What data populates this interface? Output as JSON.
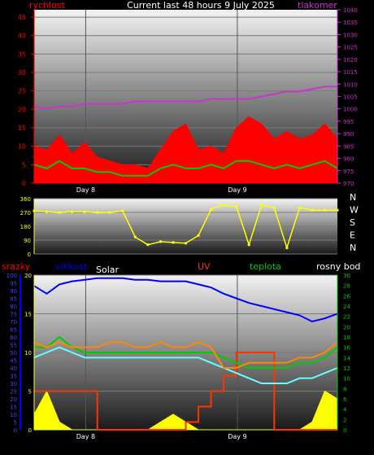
{
  "colors": {
    "background": "#000000",
    "wind": "#ff0000",
    "gust": "#00cc00",
    "pressure": "#cc33cc",
    "direction": "#ffff00",
    "rain": "#ff0000",
    "humidity": "#0000ff",
    "solar": "#ffff00",
    "uv": "#ff3300",
    "temperature": "#00cc00",
    "dewpoint": "#66ffff",
    "indoor": "#ff8800"
  },
  "chart_data": [
    {
      "type": "line",
      "title": "Current last 48 hours 9 July 2025",
      "ylabel_left": "rychlost",
      "ylabel_right": "tlakomer",
      "x_ticks": [
        "Day 8",
        "Day 9"
      ],
      "ylim_left": [
        0,
        47
      ],
      "yticks_left": [
        0,
        5,
        10,
        15,
        20,
        25,
        30,
        35,
        40,
        45
      ],
      "ylim_right": [
        970,
        1040
      ],
      "yticks_right": [
        970,
        975,
        980,
        985,
        990,
        995,
        1000,
        1005,
        1010,
        1015,
        1020,
        1025,
        1030,
        1035,
        1040
      ],
      "series": [
        {
          "key": "wind",
          "x": [
            0,
            2,
            4,
            6,
            8,
            10,
            12,
            14,
            16,
            18,
            20,
            22,
            24,
            26,
            28,
            30,
            32,
            34,
            36,
            38,
            40,
            42,
            44,
            46,
            48
          ],
          "y": [
            10,
            9,
            13,
            8,
            11,
            7,
            6,
            5,
            5,
            4,
            9,
            14,
            16,
            9,
            10,
            8,
            15,
            18,
            16,
            12,
            14,
            12,
            13,
            16,
            12
          ]
        },
        {
          "key": "gust",
          "x": [
            0,
            2,
            4,
            6,
            8,
            10,
            12,
            14,
            16,
            18,
            20,
            22,
            24,
            26,
            28,
            30,
            32,
            34,
            36,
            38,
            40,
            42,
            44,
            46,
            48
          ],
          "y": [
            5,
            4,
            6,
            4,
            4,
            3,
            3,
            2,
            2,
            2,
            4,
            5,
            4,
            4,
            5,
            4,
            6,
            6,
            5,
            4,
            5,
            4,
            5,
            6,
            4
          ]
        },
        {
          "key": "pressure",
          "x": [
            0,
            2,
            4,
            6,
            8,
            10,
            12,
            14,
            16,
            18,
            20,
            22,
            24,
            26,
            28,
            30,
            32,
            34,
            36,
            38,
            40,
            42,
            44,
            46,
            48
          ],
          "y": [
            1001,
            1000,
            1001,
            1001,
            1002,
            1002,
            1002,
            1002,
            1003,
            1003,
            1003,
            1003,
            1003,
            1003,
            1004,
            1004,
            1004,
            1004,
            1005,
            1006,
            1007,
            1007,
            1008,
            1009,
            1009
          ]
        }
      ]
    },
    {
      "type": "scatter",
      "ylim": [
        0,
        360
      ],
      "yticks": [
        0,
        90,
        180,
        270,
        360
      ],
      "compass_labels": [
        "N",
        "W",
        "S",
        "E",
        "N"
      ],
      "series": [
        {
          "key": "direction",
          "x": [
            0,
            2,
            4,
            6,
            8,
            10,
            12,
            14,
            16,
            18,
            20,
            22,
            24,
            26,
            28,
            30,
            32,
            34,
            36,
            38,
            40,
            42,
            44,
            46,
            48
          ],
          "y": [
            280,
            275,
            270,
            275,
            275,
            270,
            270,
            280,
            110,
            60,
            80,
            75,
            70,
            120,
            290,
            320,
            310,
            60,
            320,
            300,
            40,
            300,
            285,
            285,
            285
          ]
        }
      ]
    },
    {
      "type": "line",
      "labels": {
        "rain": "srazky",
        "humidity": "vlhkost",
        "solar": "Solar",
        "uv": "UV",
        "temperature": "teplota",
        "dewpoint": "rosny bod"
      },
      "x_ticks": [
        "Day 8",
        "Day 9"
      ],
      "ylim_left_outer": [
        0,
        100
      ],
      "yticks_left_outer": [
        0,
        5,
        10,
        15,
        20,
        25,
        30,
        35,
        40,
        45,
        50,
        55,
        60,
        65,
        70,
        75,
        80,
        85,
        90,
        95,
        100
      ],
      "ylim_left_inner": [
        0,
        20
      ],
      "yticks_left_inner": [
        0,
        5,
        10,
        15,
        20
      ],
      "ylim_right": [
        0,
        30
      ],
      "yticks_right": [
        0,
        2,
        4,
        6,
        8,
        10,
        12,
        14,
        16,
        18,
        20,
        22,
        24,
        26,
        28,
        30
      ],
      "series": [
        {
          "key": "humidity",
          "x": [
            0,
            2,
            4,
            6,
            8,
            10,
            12,
            14,
            16,
            18,
            20,
            22,
            24,
            26,
            28,
            30,
            32,
            34,
            36,
            38,
            40,
            42,
            44,
            46,
            48
          ],
          "y": [
            93,
            88,
            94,
            96,
            97,
            98,
            98,
            98,
            97,
            97,
            96,
            96,
            96,
            94,
            92,
            88,
            85,
            82,
            80,
            78,
            76,
            74,
            70,
            72,
            75
          ]
        },
        {
          "key": "solar",
          "x": [
            0,
            2,
            4,
            6,
            8,
            10,
            12,
            14,
            16,
            18,
            20,
            22,
            24,
            26,
            28,
            30,
            32,
            34,
            36,
            38,
            40,
            42,
            44,
            46,
            48
          ],
          "y": [
            2,
            5,
            1,
            0,
            0,
            0,
            0,
            0,
            0,
            0,
            1,
            2,
            1,
            0,
            0,
            0,
            0,
            0,
            0,
            0,
            0,
            0,
            1,
            5,
            4
          ]
        },
        {
          "key": "uv",
          "x": [
            0,
            2,
            4,
            6,
            8,
            10,
            12,
            14,
            16,
            18,
            20,
            22,
            24,
            26,
            28,
            30,
            32,
            34,
            36,
            38,
            40,
            42,
            44,
            46,
            48
          ],
          "y": [
            5,
            5,
            5,
            5,
            5,
            0,
            0,
            0,
            0,
            0,
            0,
            0,
            1,
            3,
            5,
            7,
            10,
            10,
            10,
            0,
            0,
            0,
            0,
            0,
            0
          ]
        },
        {
          "key": "temperature",
          "x": [
            0,
            2,
            4,
            6,
            8,
            10,
            12,
            14,
            16,
            18,
            20,
            22,
            24,
            26,
            28,
            30,
            32,
            34,
            36,
            38,
            40,
            42,
            44,
            46,
            48
          ],
          "y": [
            16,
            16,
            18,
            16,
            15,
            15,
            15,
            15,
            15,
            15,
            15,
            15,
            15,
            15,
            15,
            14,
            13,
            12,
            12,
            12,
            12,
            13,
            13,
            14,
            16
          ]
        },
        {
          "key": "dewpoint",
          "x": [
            0,
            2,
            4,
            6,
            8,
            10,
            12,
            14,
            16,
            18,
            20,
            22,
            24,
            26,
            28,
            30,
            32,
            34,
            36,
            38,
            40,
            42,
            44,
            46,
            48
          ],
          "y": [
            14,
            15,
            16,
            15,
            14,
            14,
            14,
            14,
            14,
            14,
            14,
            14,
            14,
            14,
            13,
            12,
            11,
            10,
            9,
            9,
            9,
            10,
            10,
            11,
            12
          ]
        },
        {
          "key": "indoor",
          "x": [
            0,
            2,
            4,
            6,
            8,
            10,
            12,
            14,
            16,
            18,
            20,
            22,
            24,
            26,
            28,
            30,
            32,
            34,
            36,
            38,
            40,
            42,
            44,
            46,
            48
          ],
          "y": [
            17,
            16,
            17,
            16,
            16,
            16,
            17,
            17,
            16,
            16,
            17,
            16,
            16,
            17,
            16,
            12,
            12,
            13,
            13,
            13,
            13,
            14,
            14,
            15,
            17
          ]
        }
      ]
    }
  ]
}
